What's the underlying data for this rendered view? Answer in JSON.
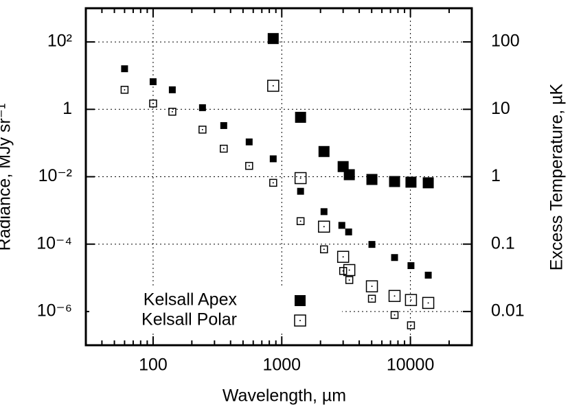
{
  "chart_data": {
    "type": "scatter",
    "xlabel": "Wavelength, µm",
    "ylabel": "Radiance, MJy sr⁻¹",
    "y2label": "Excess Temperature, µK",
    "xscale": "log",
    "yscale": "log",
    "y2scale": "log",
    "xlim": [
      30,
      30000
    ],
    "ylim": [
      1e-07,
      1000
    ],
    "y2lim": [
      0.00316,
      316
    ],
    "xticks": [
      100,
      1000,
      10000
    ],
    "xminorticks": [
      40,
      50,
      60,
      70,
      80,
      90,
      200,
      300,
      400,
      500,
      600,
      700,
      800,
      900,
      2000,
      3000,
      4000,
      5000,
      6000,
      7000,
      8000,
      9000,
      20000
    ],
    "yticks": [
      {
        "value": 100,
        "label": "10²"
      },
      1,
      {
        "value": 0.01,
        "label": "10⁻²"
      },
      {
        "value": 0.0001,
        "label": "10⁻⁴"
      },
      {
        "value": 1e-06,
        "label": "10⁻⁶"
      }
    ],
    "y2ticks": [
      100,
      10,
      1,
      0.1,
      0.01
    ],
    "grid": true,
    "series": [
      {
        "name": "Kelsall Apex",
        "color": "#000000",
        "marker": "filled",
        "size": "large",
        "x": [
          858,
          1400,
          2130,
          3000,
          3350,
          5020,
          7530,
          10100,
          13760
        ],
        "values": [
          126,
          0.58,
          0.056,
          0.02,
          0.0115,
          0.0083,
          0.0072,
          0.0069,
          0.0066
        ]
      },
      {
        "name": "Kelsall Polar",
        "color": "#000000",
        "marker": "open",
        "size": "large",
        "x": [
          858,
          1400,
          2130,
          3000,
          3350,
          5020,
          7530,
          10100,
          13760
        ],
        "values": [
          5.0,
          0.0091,
          0.00033,
          4.2e-05,
          1.7e-05,
          5.6e-06,
          2.9e-06,
          2.2e-06,
          1.8e-06
        ]
      },
      {
        "color": "#000000",
        "marker": "filled",
        "size": "small",
        "x": [
          60,
          100,
          141,
          242,
          354,
          558,
          858,
          1400,
          2130,
          2930,
          3310,
          5020,
          7530,
          10100,
          13760
        ],
        "values": [
          16,
          6.6,
          3.8,
          1.12,
          0.33,
          0.108,
          0.034,
          0.0037,
          0.00092,
          0.00036,
          0.00023,
          9.8e-05,
          4e-05,
          2.3e-05,
          1.2e-05
        ]
      },
      {
        "color": "#000000",
        "marker": "open",
        "size": "small",
        "x": [
          60,
          100,
          141,
          242,
          354,
          558,
          858,
          1400,
          2130,
          3000,
          3350,
          5020,
          7530,
          10100
        ],
        "values": [
          3.8,
          1.49,
          0.85,
          0.25,
          0.068,
          0.021,
          0.0066,
          0.00048,
          7e-05,
          1.6e-05,
          8.6e-06,
          2.4e-06,
          7.9e-07,
          3.9e-07
        ]
      }
    ]
  }
}
